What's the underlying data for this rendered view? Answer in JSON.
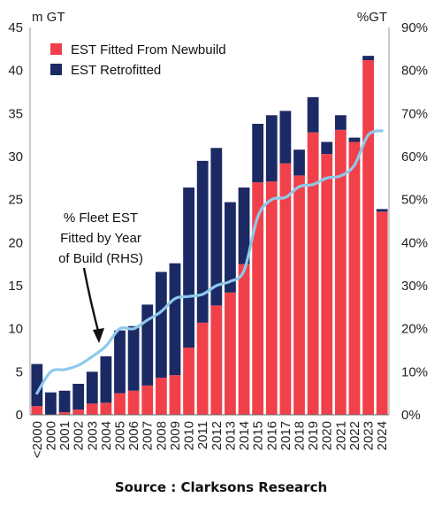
{
  "chart_data": {
    "type": "bar",
    "stacked": true,
    "categories": [
      "<2000",
      "2000",
      "2001",
      "2002",
      "2003",
      "2004",
      "2005",
      "2006",
      "2007",
      "2008",
      "2009",
      "2010",
      "2011",
      "2012",
      "2013",
      "2014",
      "2015",
      "2016",
      "2017",
      "2018",
      "2019",
      "2020",
      "2021",
      "2022",
      "2023",
      "2024"
    ],
    "series": [
      {
        "name": "EST Fitted From Newbuild",
        "color": "#f0414b",
        "values": [
          1.0,
          0.0,
          0.3,
          0.6,
          1.3,
          1.4,
          2.5,
          2.8,
          3.4,
          4.3,
          4.6,
          7.8,
          10.7,
          12.7,
          14.2,
          17.5,
          27.0,
          27.1,
          29.2,
          27.8,
          32.8,
          30.3,
          33.1,
          31.7,
          41.2,
          23.6
        ]
      },
      {
        "name": "EST Retrofitted",
        "color": "#1b2a64",
        "values": [
          4.9,
          2.6,
          2.5,
          3.0,
          3.7,
          5.4,
          7.3,
          7.5,
          9.4,
          12.3,
          13.0,
          18.6,
          18.8,
          18.3,
          10.5,
          8.9,
          6.8,
          7.7,
          6.1,
          3.0,
          4.1,
          1.4,
          1.7,
          0.5,
          0.5,
          0.3
        ]
      }
    ],
    "line_series": {
      "name": "% Fleet EST Fitted by Year of Build (RHS)",
      "color": "#8ec9ea",
      "axis": "right",
      "values": [
        5,
        10,
        10.5,
        11.5,
        13.5,
        16,
        20,
        20,
        22,
        24,
        27,
        27.5,
        28,
        30,
        31,
        33.5,
        46,
        50,
        50.5,
        53,
        53.5,
        55,
        55.5,
        58,
        65,
        66
      ]
    },
    "ylabel": "m GT",
    "y2label": "%GT",
    "ylim": [
      0,
      45
    ],
    "yticks": [
      0,
      5,
      10,
      15,
      20,
      25,
      30,
      35,
      40,
      45
    ],
    "y2lim": [
      0,
      90
    ],
    "y2ticks": [
      "0%",
      "10%",
      "20%",
      "30%",
      "40%",
      "50%",
      "60%",
      "70%",
      "80%",
      "90%"
    ],
    "legend_position": "top-left",
    "annotation": [
      "% Fleet EST",
      "Fitted by Year",
      "of Build (RHS)"
    ],
    "grid": false
  },
  "source": "Source : Clarksons Research"
}
